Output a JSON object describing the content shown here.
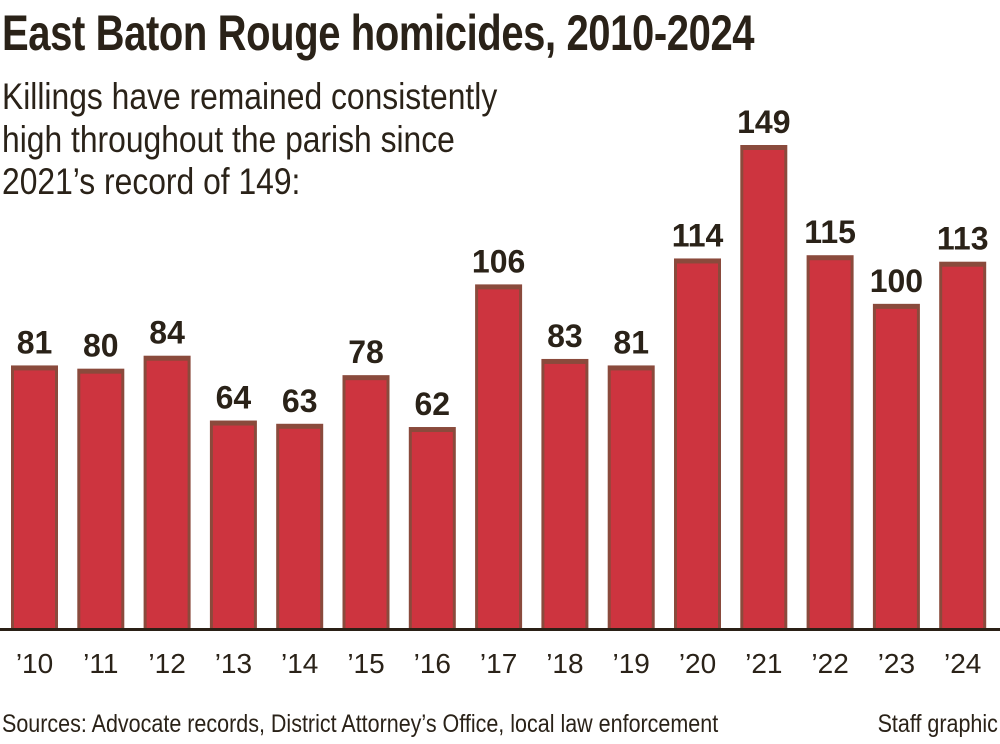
{
  "chart_data": {
    "type": "bar",
    "title": "East Baton Rouge homicides, 2010-2024",
    "subtitle_lines": [
      "Killings have remained consistently",
      "high throughout the parish since",
      "2021’s record of 149:"
    ],
    "categories": [
      "’10",
      "’11",
      "’12",
      "’13",
      "’14",
      "’15",
      "’16",
      "’17",
      "’18",
      "’19",
      "’20",
      "’21",
      "’22",
      "’23",
      "’24"
    ],
    "values": [
      81,
      80,
      84,
      64,
      63,
      78,
      62,
      106,
      83,
      81,
      114,
      149,
      115,
      100,
      113
    ],
    "data_labels": true,
    "xlabel": "",
    "ylabel": "",
    "ylim": [
      0,
      149
    ],
    "grid": false,
    "colors": {
      "bar": "#cd343f",
      "bar_edge": "#8a4a3c",
      "baseline": "#2a2016",
      "text": "#2a2218"
    }
  },
  "footer": {
    "source": "Sources: Advocate records, District Attorney’s Office, local law enforcement",
    "credit": "Staff graphic"
  }
}
